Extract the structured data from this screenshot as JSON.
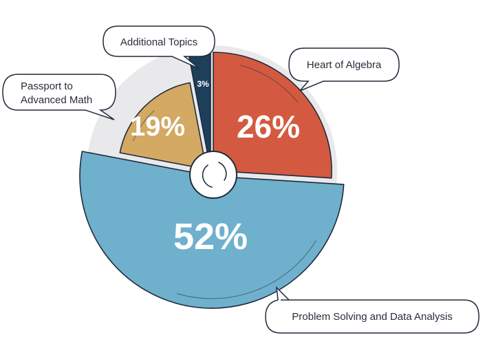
{
  "chart_data": {
    "type": "pie",
    "categories": [
      "Heart of Algebra",
      "Problem Solving and Data Analysis",
      "Passport to Advanced Math",
      "Additional Topics"
    ],
    "values": [
      26,
      52,
      19,
      3
    ],
    "labels": [
      "26%",
      "52%",
      "19%",
      "3%"
    ],
    "colors": [
      "#d35a40",
      "#6fb0cd",
      "#d3a963",
      "#1d3f5c"
    ]
  },
  "callouts": {
    "heart": "Heart of Algebra",
    "problem": "Problem Solving and Data Analysis",
    "passport_line1": "Passport to",
    "passport_line2": "Advanced Math",
    "additional": "Additional Topics"
  }
}
